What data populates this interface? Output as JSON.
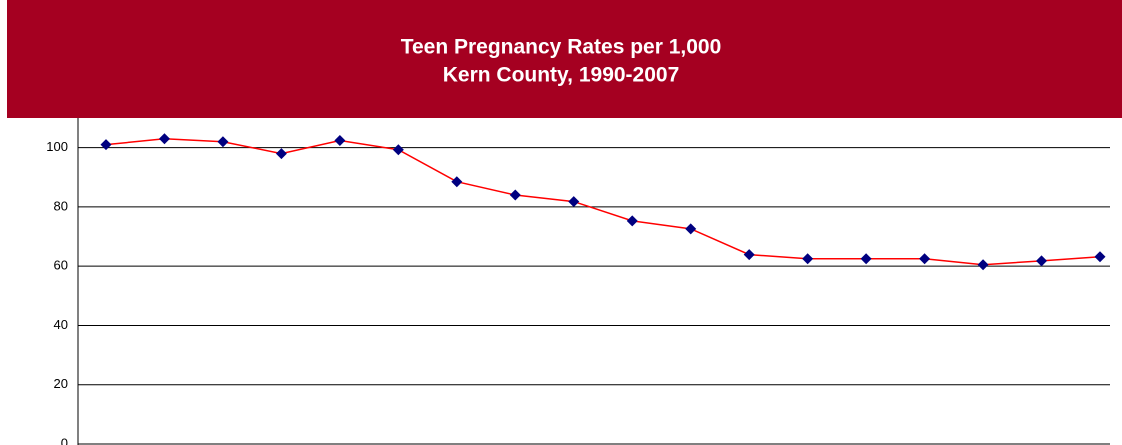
{
  "chart_data": {
    "type": "line",
    "title": "Teen Pregnancy Rates per 1,000",
    "subtitle": "Kern County, 1990-2007",
    "series": [
      {
        "color": "#ff0000",
        "marker_color": "#000080",
        "values": [
          101,
          103,
          102,
          98,
          102.4,
          99.3,
          88.5,
          84,
          81.8,
          75.3,
          72.6,
          63.9,
          62.5,
          62.5,
          62.5,
          60.5,
          61.8,
          63.2
        ]
      }
    ],
    "ylim": [
      0,
      110
    ],
    "yticks": [
      0,
      20,
      40,
      60,
      80,
      100
    ],
    "grid": true
  }
}
